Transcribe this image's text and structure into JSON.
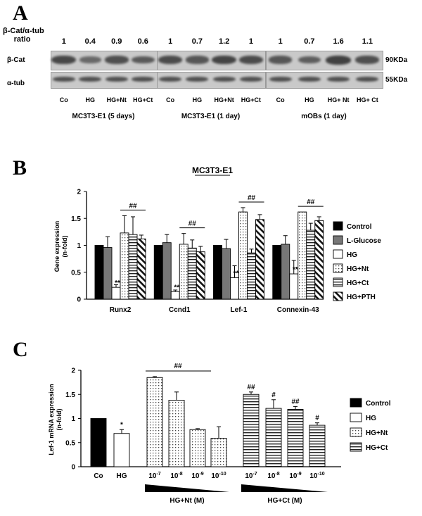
{
  "panel_a": {
    "letter": "A",
    "ratio_label_line1": "β-Cat/α-tub",
    "ratio_label_line2": "ratio",
    "row_labels": [
      "β-Cat",
      "α-tub"
    ],
    "mw_labels": [
      "90KDa",
      "55KDa"
    ],
    "groups": [
      {
        "title": "MC3T3-E1 (5 days)",
        "lanes": [
          "Co",
          "HG",
          "HG+Nt",
          "HG+Ct"
        ],
        "ratios": [
          "1",
          "0.4",
          "0.9",
          "0.6"
        ],
        "bcat_intensity": [
          0.9,
          0.45,
          0.8,
          0.65
        ]
      },
      {
        "title": "MC3T3-E1 (1 day)",
        "lanes": [
          "Co",
          "HG",
          "HG+Nt",
          "HG+Ct"
        ],
        "ratios": [
          "1",
          "0.7",
          "1.2",
          "1"
        ],
        "bcat_intensity": [
          0.85,
          0.7,
          0.95,
          0.85
        ]
      },
      {
        "title": "mOBs (1 day)",
        "lanes": [
          "Co",
          "HG",
          "HG+ Nt",
          "HG+ Ct"
        ],
        "ratios": [
          "1",
          "0.7",
          "1.6",
          "1.1"
        ],
        "bcat_intensity": [
          0.7,
          0.6,
          1.0,
          0.8
        ]
      }
    ]
  },
  "chart_data": [
    {
      "type": "bar",
      "panel": "B",
      "title": "MC3T3-E1",
      "ylabel": "Gene expression (n-fold)",
      "ylim": [
        0,
        2
      ],
      "yticks": [
        "0",
        "0.5",
        "1",
        "1.5",
        "2"
      ],
      "categories": [
        "Runx2",
        "Ccnd1",
        "Lef-1",
        "Connexin-43"
      ],
      "series": [
        {
          "name": "Control",
          "values": [
            1.0,
            1.0,
            1.0,
            1.0
          ],
          "errors": [
            0,
            0,
            0,
            0
          ]
        },
        {
          "name": "L-Glucose",
          "values": [
            0.96,
            1.05,
            0.94,
            1.02
          ],
          "errors": [
            0.2,
            0.15,
            0.17,
            0.16
          ]
        },
        {
          "name": "HG",
          "values": [
            0.22,
            0.14,
            0.4,
            0.47
          ],
          "errors": [
            0.05,
            0.03,
            0.22,
            0.25
          ]
        },
        {
          "name": "HG+Nt",
          "values": [
            1.23,
            1.02,
            1.62,
            1.62
          ],
          "errors": [
            0.32,
            0.2,
            0.08,
            0
          ]
        },
        {
          "name": "HG+Ct",
          "values": [
            1.2,
            0.95,
            0.86,
            1.28
          ],
          "errors": [
            0.33,
            0.15,
            0.07,
            0.13
          ]
        },
        {
          "name": "HG+PTH",
          "values": [
            1.12,
            0.88,
            1.48,
            1.46
          ],
          "errors": [
            0.07,
            0.1,
            0.09,
            0.07
          ]
        }
      ],
      "hg_mark": "**",
      "sig_mark": "##",
      "legend": "right"
    },
    {
      "type": "bar",
      "panel": "C",
      "ylabel": "Lef-1 mRNA expression (n-fold)",
      "ylim": [
        0,
        2
      ],
      "yticks": [
        "0",
        "0.5",
        "1",
        "1.5",
        "2"
      ],
      "bars": [
        {
          "label": "Co",
          "group": "Control",
          "value": 1.0,
          "error": 0,
          "mark": ""
        },
        {
          "label": "HG",
          "group": "HG",
          "value": 0.69,
          "error": 0.08,
          "mark": "*"
        },
        {
          "label": "10-7",
          "group": "HG+Nt",
          "value": 1.85,
          "error": 0.02,
          "mark": ""
        },
        {
          "label": "10-8",
          "group": "HG+Nt",
          "value": 1.38,
          "error": 0.17,
          "mark": ""
        },
        {
          "label": "10-9",
          "group": "HG+Nt",
          "value": 0.77,
          "error": 0.02,
          "mark": ""
        },
        {
          "label": "10-10",
          "group": "HG+Nt",
          "value": 0.59,
          "error": 0.24,
          "mark": ""
        },
        {
          "label": "10-7",
          "group": "HG+Ct",
          "value": 1.5,
          "error": 0.05,
          "mark": "##"
        },
        {
          "label": "10-8",
          "group": "HG+Ct",
          "value": 1.21,
          "error": 0.18,
          "mark": "#"
        },
        {
          "label": "10-9",
          "group": "HG+Ct",
          "value": 1.19,
          "error": 0.06,
          "mark": "##"
        },
        {
          "label": "10-10",
          "group": "HG+Ct",
          "value": 0.86,
          "error": 0.05,
          "mark": "#"
        }
      ],
      "bracket_mark": "##",
      "group_labels": [
        "HG+Nt (M)",
        "HG+Ct (M)"
      ],
      "legend_entries": [
        "Control",
        "HG",
        "HG+Nt",
        "HG+Ct"
      ],
      "legend": "right"
    }
  ]
}
